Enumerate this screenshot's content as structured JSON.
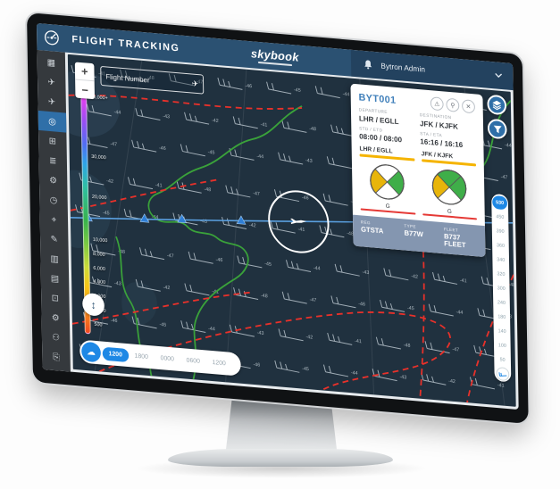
{
  "window": {
    "title": "FLIGHT TRACKING",
    "brand": "skybook",
    "user_menu": "Bytron Admin"
  },
  "sidebar": {
    "active_index": 3,
    "items": [
      {
        "name": "dashboard-icon",
        "glyph": "▦"
      },
      {
        "name": "flight-plans-icon",
        "glyph": "✈"
      },
      {
        "name": "flight-ops-icon",
        "glyph": "✈"
      },
      {
        "name": "flight-tracking-radar-icon",
        "glyph": "◎"
      },
      {
        "name": "departures-board-icon",
        "glyph": "⊞"
      },
      {
        "name": "briefing-list-icon",
        "glyph": "≣"
      },
      {
        "name": "aircraft-config-icon",
        "glyph": "⚙"
      },
      {
        "name": "schedule-clock-icon",
        "glyph": "◷"
      },
      {
        "name": "pin-board-icon",
        "glyph": "⌖"
      },
      {
        "name": "report-edit-icon",
        "glyph": "✎"
      },
      {
        "name": "analytics-chart-icon",
        "glyph": "▥"
      },
      {
        "name": "flight-table-icon",
        "glyph": "▤"
      },
      {
        "name": "displays-icon",
        "glyph": "⊡"
      },
      {
        "name": "settings-gear-icon",
        "glyph": "⚙"
      },
      {
        "name": "user-profile-icon",
        "glyph": "⚇"
      },
      {
        "name": "export-doc-icon",
        "glyph": "⎘"
      }
    ]
  },
  "map": {
    "search_placeholder": "Flight Number",
    "zoom_in": "+",
    "zoom_out": "−",
    "altitude_scale": {
      "unit": "ft",
      "labels": [
        "40,000+",
        "30,000",
        "20,000",
        "10,000",
        "8,000",
        "6,000",
        "4,000",
        "2,000",
        "1,000",
        "500"
      ]
    },
    "flight_levels": {
      "selected": "530",
      "options": [
        "530",
        "450",
        "390",
        "360",
        "340",
        "320",
        "300",
        "240",
        "180",
        "140",
        "100",
        "50"
      ]
    },
    "timeline": {
      "selected_index": 0,
      "options": [
        "1200",
        "1800",
        "0000",
        "0600",
        "1200"
      ]
    },
    "wind_temps_range": [
      -41,
      -48
    ]
  },
  "flight_card": {
    "callsign": "BYT001",
    "departure": {
      "label": "DEPARTURE",
      "value": "LHR / EGLL"
    },
    "destination": {
      "label": "DESTINATION",
      "value": "JFK / KJFK"
    },
    "std_etd": {
      "label": "STD / ETD",
      "value": "08:00 / 08:00"
    },
    "sta_eta": {
      "label": "STA / ETA",
      "value": "16:16 / 16:16"
    },
    "weather": [
      {
        "station": "LHR / EGLL",
        "flag": "G",
        "quadrants": {
          "north": "#ffffff",
          "east": "#3fae49",
          "south": "#ffffff",
          "west": "#e8b50a"
        }
      },
      {
        "station": "JFK / KJFK",
        "flag": "G",
        "quadrants": {
          "north": "#3fae49",
          "east": "#3fae49",
          "south": "#ffffff",
          "west": "#e8b50a"
        }
      }
    ],
    "footer": {
      "reg_label": "REG",
      "reg": "GTSTA",
      "type_label": "TYPE",
      "type": "B77W",
      "fleet_label": "FLEET",
      "fleet": "B737 FLEET"
    }
  },
  "colors": {
    "header_blue": "#2b5172",
    "accent_blue": "#1e88e5",
    "active_sidebar": "#2f6fa8",
    "map_bg": "#20313f",
    "route_blue": "#5aa0e0",
    "contour_green": "#3aa23a",
    "jet_red": "#e8312a",
    "wx_amber": "#f5b400",
    "wx_red": "#e53935",
    "card_footer_slate": "#8496b0"
  }
}
